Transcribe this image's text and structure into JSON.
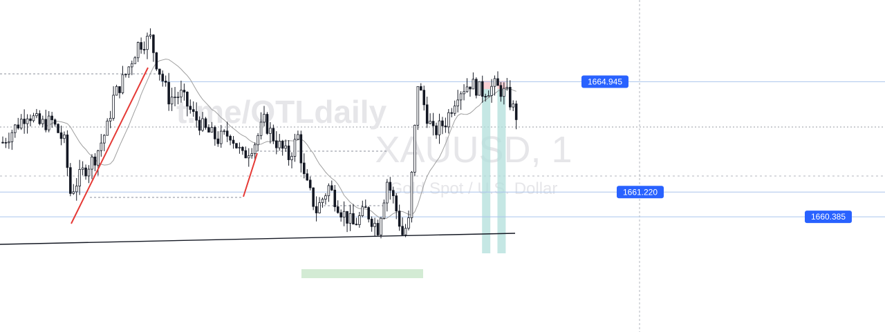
{
  "watermark": {
    "channel": "t.me/OTLdaily",
    "symbol": "XAUUSD, 1",
    "description": "Gold Spot / U.S. Dollar"
  },
  "colors": {
    "candle": "#131722",
    "level_line": "#a9c4ec",
    "label_bg": "#2962ff",
    "trend_line": "#e53935",
    "demand_zone": "#c8e6c9",
    "marker_teal": "#b2dfdb",
    "marker_red": "#ffcdd2",
    "long_ma": "#131722",
    "short_ma": "#9e9e9e"
  },
  "chart_data": {
    "type": "candlestick",
    "symbol": "XAUUSD",
    "timeframe": "1",
    "levels": [
      {
        "price": 1664.945,
        "label": "1664.945"
      },
      {
        "price": 1661.22,
        "label": "1661.220"
      },
      {
        "price": 1660.385,
        "label": "1660.385"
      }
    ],
    "ylim": [
      1656.5,
      1667.7
    ],
    "xlim": [
      0,
      170
    ],
    "close_path": [
      [
        0,
        1662.9
      ],
      [
        4,
        1663.4
      ],
      [
        8,
        1663.9
      ],
      [
        12,
        1663.5
      ],
      [
        16,
        1663.6
      ],
      [
        20,
        1662.9
      ],
      [
        22,
        1661.2
      ],
      [
        26,
        1661.9
      ],
      [
        30,
        1662.4
      ],
      [
        34,
        1663.4
      ],
      [
        36,
        1664.4
      ],
      [
        40,
        1665.2
      ],
      [
        44,
        1666.2
      ],
      [
        48,
        1666.4
      ],
      [
        50,
        1665.6
      ],
      [
        54,
        1664.4
      ],
      [
        58,
        1664.5
      ],
      [
        62,
        1663.8
      ],
      [
        66,
        1663.3
      ],
      [
        70,
        1663.0
      ],
      [
        74,
        1663.2
      ],
      [
        78,
        1662.4
      ],
      [
        82,
        1662.9
      ],
      [
        85,
        1663.6
      ],
      [
        89,
        1662.9
      ],
      [
        93,
        1662.4
      ],
      [
        96,
        1663.1
      ],
      [
        98,
        1661.7
      ],
      [
        102,
        1660.6
      ],
      [
        106,
        1661.4
      ],
      [
        110,
        1660.6
      ],
      [
        114,
        1660.1
      ],
      [
        118,
        1660.6
      ],
      [
        122,
        1660.0
      ],
      [
        125,
        1661.6
      ],
      [
        127,
        1661.0
      ],
      [
        130,
        1659.8
      ],
      [
        132,
        1660.2
      ],
      [
        135,
        1664.9
      ],
      [
        138,
        1663.8
      ],
      [
        140,
        1663.2
      ],
      [
        144,
        1663.6
      ],
      [
        148,
        1664.6
      ],
      [
        152,
        1664.9
      ],
      [
        156,
        1664.6
      ],
      [
        160,
        1664.8
      ],
      [
        164,
        1664.5
      ],
      [
        167,
        1663.8
      ]
    ],
    "highlighted_candles": [
      157,
      162
    ]
  }
}
